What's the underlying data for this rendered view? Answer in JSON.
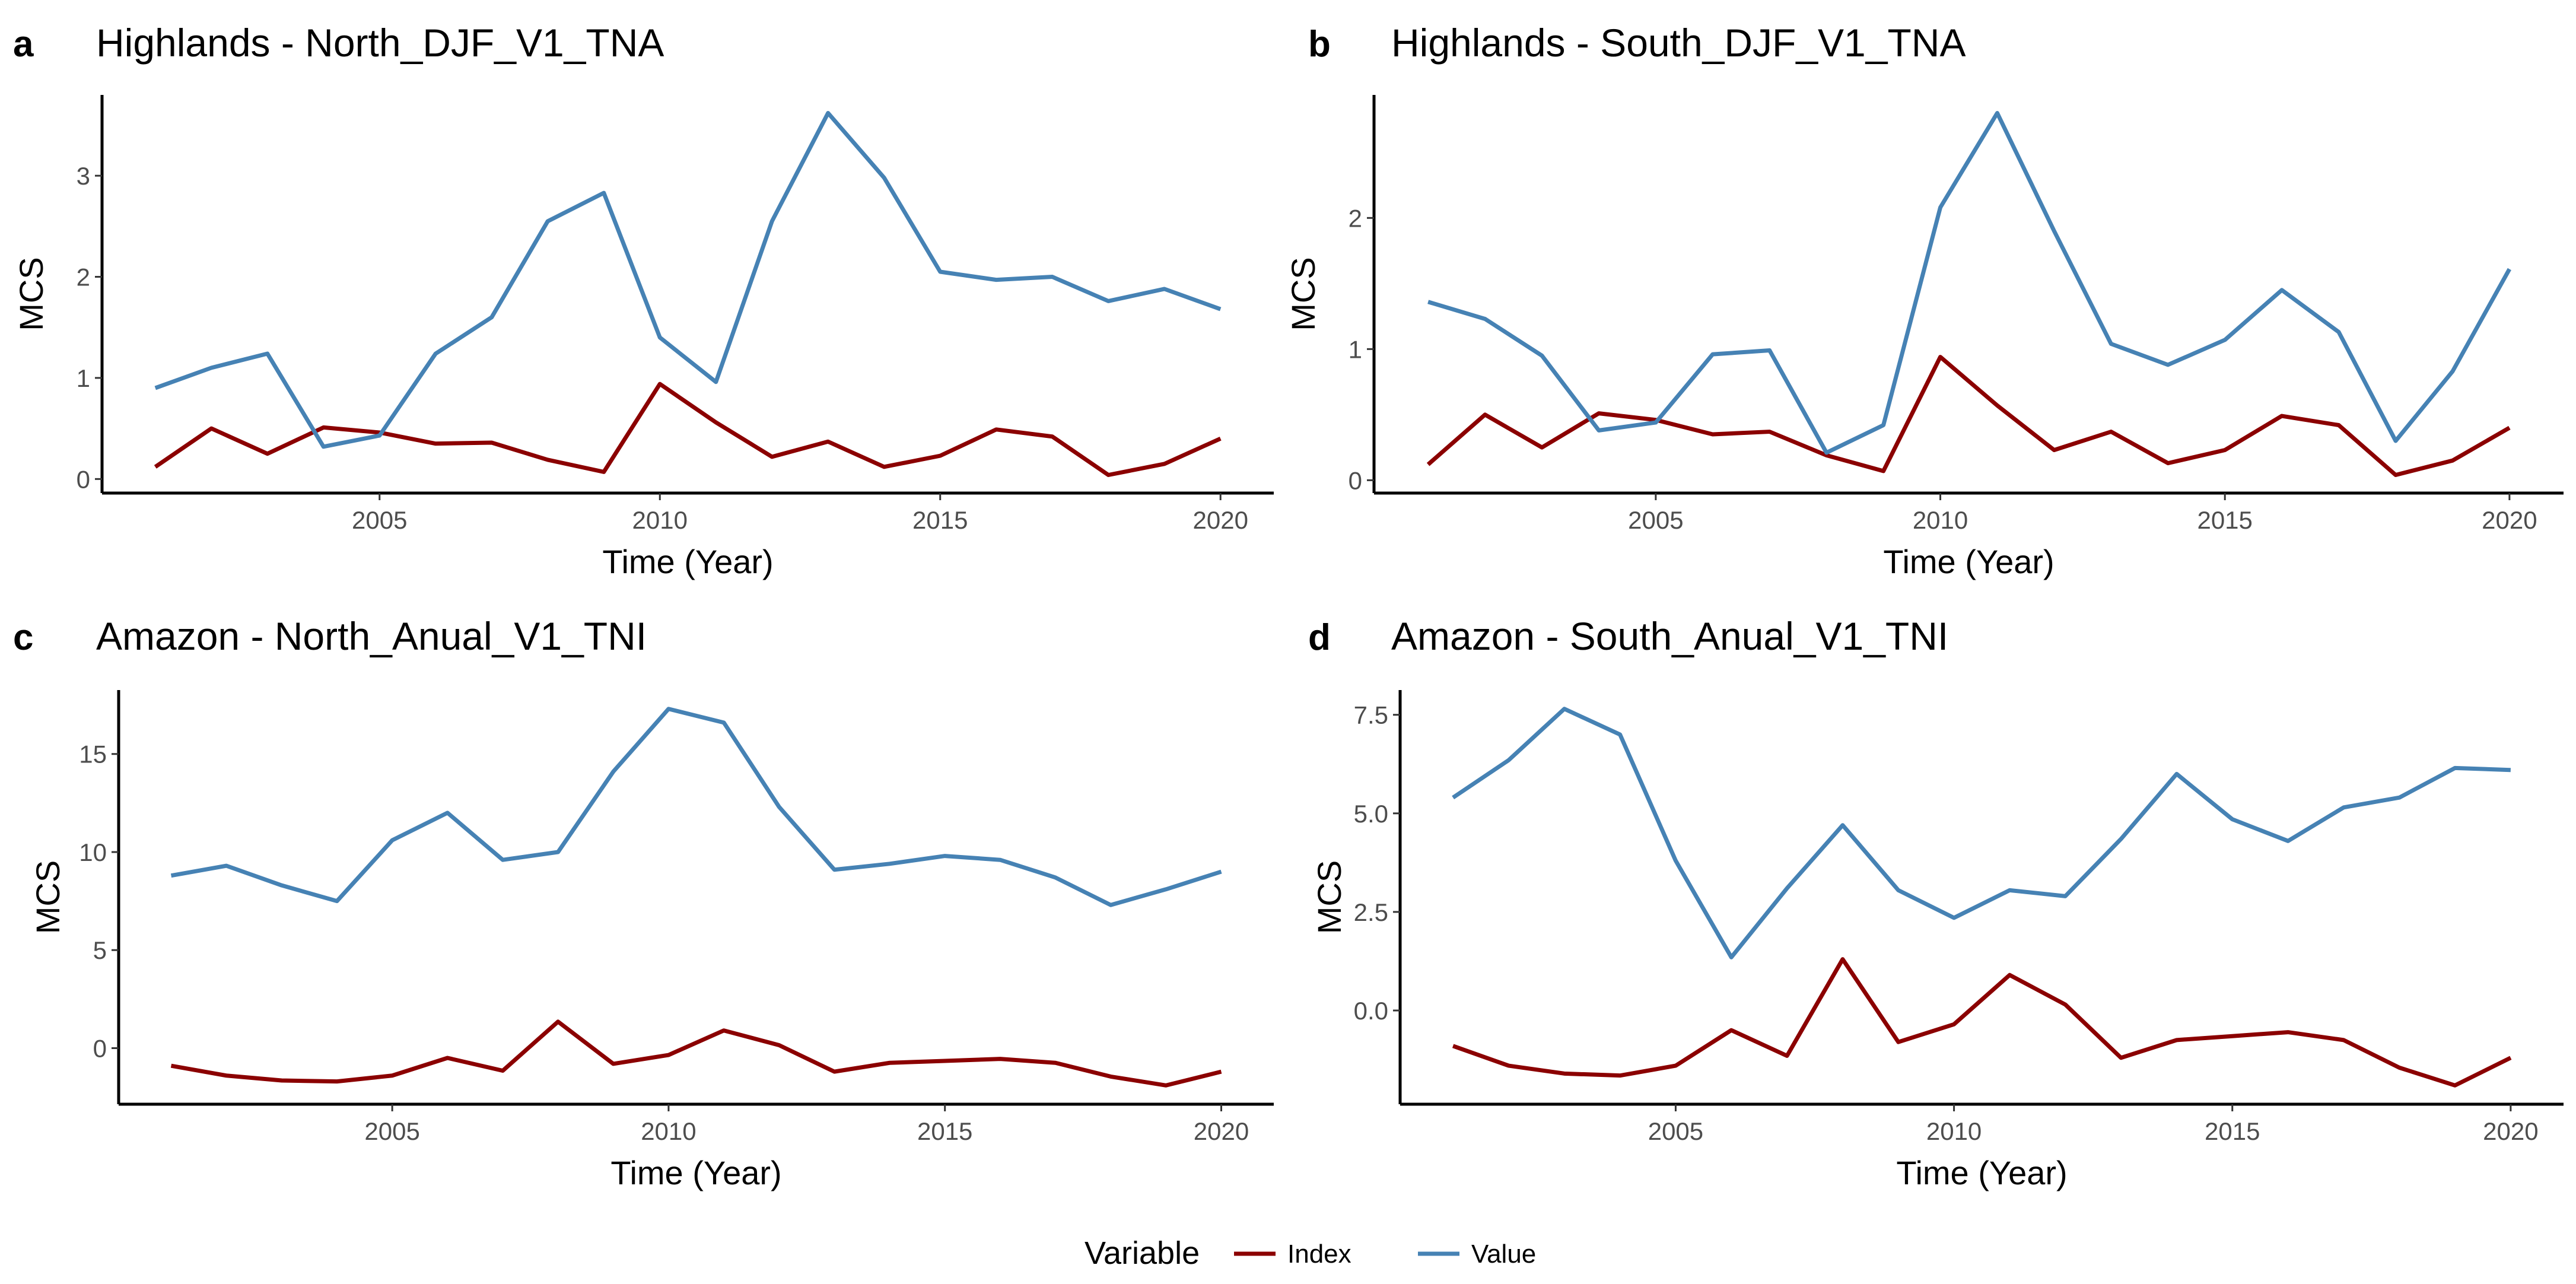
{
  "legend": {
    "title": "Variable",
    "entries": [
      {
        "name": "Index",
        "color": "#8B0000"
      },
      {
        "name": "Value",
        "color": "#4682B4"
      }
    ]
  },
  "chart_data": [
    {
      "type": "line",
      "tag": "a",
      "title": "Highlands - North_DJF_V1_TNA",
      "xlabel": "Time (Year)",
      "ylabel": "MCS",
      "x": [
        2001,
        2002,
        2003,
        2004,
        2005,
        2006,
        2007,
        2008,
        2009,
        2010,
        2011,
        2012,
        2013,
        2014,
        2015,
        2016,
        2017,
        2018,
        2019,
        2020
      ],
      "xticks": [
        "2005",
        "2010",
        "2015",
        "2020"
      ],
      "yticks": [
        "0",
        "1",
        "2",
        "3"
      ],
      "series": [
        {
          "name": "Index",
          "values": [
            0.12,
            0.5,
            0.25,
            0.51,
            0.46,
            0.35,
            0.36,
            0.19,
            0.07,
            0.94,
            0.56,
            0.22,
            0.37,
            0.12,
            0.23,
            0.49,
            0.42,
            0.04,
            0.15,
            0.4
          ]
        },
        {
          "name": "Value",
          "values": [
            0.9,
            1.1,
            1.24,
            0.32,
            0.43,
            1.24,
            1.6,
            2.55,
            2.83,
            1.4,
            0.96,
            2.55,
            3.62,
            2.98,
            2.05,
            1.97,
            2.0,
            1.76,
            1.88,
            1.68
          ]
        }
      ]
    },
    {
      "type": "line",
      "tag": "b",
      "title": "Highlands - South_DJF_V1_TNA",
      "xlabel": "Time (Year)",
      "ylabel": "MCS",
      "x": [
        2001,
        2002,
        2003,
        2004,
        2005,
        2006,
        2007,
        2008,
        2009,
        2010,
        2011,
        2012,
        2013,
        2014,
        2015,
        2016,
        2017,
        2018,
        2019,
        2020
      ],
      "xticks": [
        "2005",
        "2010",
        "2015",
        "2020"
      ],
      "yticks": [
        "0",
        "1",
        "2"
      ],
      "series": [
        {
          "name": "Index",
          "values": [
            0.12,
            0.5,
            0.25,
            0.51,
            0.46,
            0.35,
            0.37,
            0.19,
            0.07,
            0.94,
            0.57,
            0.23,
            0.37,
            0.13,
            0.23,
            0.49,
            0.42,
            0.04,
            0.15,
            0.4
          ]
        },
        {
          "name": "Value",
          "values": [
            1.36,
            1.23,
            0.95,
            0.38,
            0.44,
            0.96,
            0.99,
            0.21,
            0.42,
            2.08,
            2.8,
            1.9,
            1.04,
            0.88,
            1.07,
            1.45,
            1.13,
            0.3,
            0.83,
            1.61
          ]
        }
      ]
    },
    {
      "type": "line",
      "tag": "c",
      "title": "Amazon - North_Anual_V1_TNI",
      "xlabel": "Time (Year)",
      "ylabel": "MCS",
      "x": [
        2001,
        2002,
        2003,
        2004,
        2005,
        2006,
        2007,
        2008,
        2009,
        2010,
        2011,
        2012,
        2013,
        2014,
        2015,
        2016,
        2017,
        2018,
        2019,
        2020
      ],
      "xticks": [
        "2005",
        "2010",
        "2015",
        "2020"
      ],
      "yticks": [
        "0",
        "5",
        "10",
        "15"
      ],
      "series": [
        {
          "name": "Index",
          "values": [
            -0.9,
            -1.4,
            -1.65,
            -1.7,
            -1.4,
            -0.5,
            -1.15,
            1.35,
            -0.8,
            -0.35,
            0.9,
            0.15,
            -1.2,
            -0.75,
            -0.65,
            -0.55,
            -0.75,
            -1.45,
            -1.9,
            -1.2
          ]
        },
        {
          "name": "Value",
          "values": [
            8.8,
            9.3,
            8.3,
            7.5,
            10.6,
            12.0,
            9.6,
            10.0,
            14.1,
            17.3,
            16.6,
            12.3,
            9.1,
            9.4,
            9.8,
            9.6,
            8.7,
            7.3,
            8.1,
            9.0
          ]
        }
      ]
    },
    {
      "type": "line",
      "tag": "d",
      "title": "Amazon - South_Anual_V1_TNI",
      "xlabel": "Time (Year)",
      "ylabel": "MCS",
      "x": [
        2001,
        2002,
        2003,
        2004,
        2005,
        2006,
        2007,
        2008,
        2009,
        2010,
        2011,
        2012,
        2013,
        2014,
        2015,
        2016,
        2017,
        2018,
        2019,
        2020
      ],
      "xticks": [
        "2005",
        "2010",
        "2015",
        "2020"
      ],
      "yticks": [
        "0.0",
        "2.5",
        "5.0",
        "7.5"
      ],
      "series": [
        {
          "name": "Index",
          "values": [
            -0.9,
            -1.4,
            -1.6,
            -1.65,
            -1.4,
            -0.5,
            -1.15,
            1.3,
            -0.8,
            -0.35,
            0.9,
            0.15,
            -1.2,
            -0.75,
            -0.65,
            -0.55,
            -0.75,
            -1.45,
            -1.9,
            -1.2
          ]
        },
        {
          "name": "Value",
          "values": [
            5.4,
            6.35,
            7.65,
            7.0,
            3.8,
            1.35,
            3.1,
            4.7,
            3.05,
            2.35,
            3.05,
            2.9,
            4.35,
            6.0,
            4.85,
            4.3,
            5.15,
            5.4,
            6.15,
            6.1
          ]
        }
      ]
    }
  ]
}
